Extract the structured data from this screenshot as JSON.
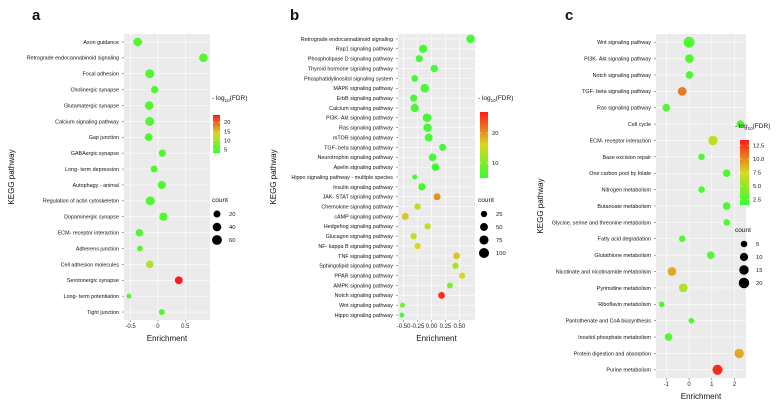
{
  "chart_data": [
    {
      "panel": "a",
      "type": "scatter",
      "xlabel": "Enrichment",
      "ylabel": "KEGG pathway",
      "xticks": [
        -0.5,
        0.0,
        0.5
      ],
      "xlim": [
        -0.62,
        0.95
      ],
      "colorbar": {
        "title_html": "- log",
        "sub": "10",
        "suffix": "(FDR)",
        "ticks": [
          5,
          10,
          15,
          20
        ],
        "min": 3,
        "max": 24
      },
      "size_legend": {
        "title": "count",
        "values": [
          20,
          40,
          60
        ]
      },
      "count_range": [
        1,
        70
      ],
      "pathways": [
        {
          "name": "Axon guidance",
          "x": -0.37,
          "count": 40,
          "fdr": 5
        },
        {
          "name": "Retrograde endocannabinoid signaling",
          "x": 0.83,
          "count": 40,
          "fdr": 5
        },
        {
          "name": "Focal adhesion",
          "x": -0.15,
          "count": 45,
          "fdr": 5
        },
        {
          "name": "Cholinergic synapse",
          "x": -0.06,
          "count": 25,
          "fdr": 5
        },
        {
          "name": "Glutamatergic synapse",
          "x": -0.16,
          "count": 40,
          "fdr": 5
        },
        {
          "name": "Calcium signaling pathway",
          "x": -0.15,
          "count": 45,
          "fdr": 5
        },
        {
          "name": "Gap junction",
          "x": -0.17,
          "count": 30,
          "fdr": 5
        },
        {
          "name": "GABAergic synapse",
          "x": 0.08,
          "count": 25,
          "fdr": 5
        },
        {
          "name": "Long- term depression",
          "x": -0.07,
          "count": 20,
          "fdr": 5
        },
        {
          "name": "Autophagy - animal",
          "x": 0.07,
          "count": 35,
          "fdr": 5
        },
        {
          "name": "Regulation of actin cytoskeleton",
          "x": -0.14,
          "count": 45,
          "fdr": 5
        },
        {
          "name": "Dopaminergic synapse",
          "x": 0.1,
          "count": 35,
          "fdr": 5
        },
        {
          "name": "ECM- receptor interaction",
          "x": -0.34,
          "count": 25,
          "fdr": 5
        },
        {
          "name": "Adherens junction",
          "x": -0.33,
          "count": 10,
          "fdr": 5
        },
        {
          "name": "Cell adhesion molecules",
          "x": -0.15,
          "count": 25,
          "fdr": 11
        },
        {
          "name": "Serotonergic synapse",
          "x": 0.38,
          "count": 30,
          "fdr": 24
        },
        {
          "name": "Long- term potentiation",
          "x": -0.53,
          "count": 5,
          "fdr": 5
        },
        {
          "name": "Tight junction",
          "x": 0.07,
          "count": 10,
          "fdr": 5
        }
      ]
    },
    {
      "panel": "b",
      "type": "scatter",
      "xlabel": "Enrichment",
      "ylabel": "KEGG pathway",
      "xticks": [
        -0.5,
        -0.25,
        0.0,
        0.25,
        0.5
      ],
      "xtick_labels": [
        "-0.50",
        "-0.25",
        "0.00",
        "0.25",
        "0.50"
      ],
      "xlim": [
        -0.6,
        0.78
      ],
      "colorbar": {
        "title_html": "- log",
        "sub": "10",
        "suffix": "(FDR)",
        "ticks": [
          10,
          20
        ],
        "min": 5,
        "max": 27
      },
      "size_legend": {
        "title": "count",
        "values": [
          25,
          50,
          75,
          100
        ]
      },
      "count_range": [
        5,
        110
      ],
      "pathways": [
        {
          "name": "Retrograde endocannabinoid signaling",
          "x": 0.7,
          "count": 60,
          "fdr": 6
        },
        {
          "name": "Rap1 signaling pathway",
          "x": -0.15,
          "count": 55,
          "fdr": 6
        },
        {
          "name": "Phospholipase D signaling pathway",
          "x": -0.22,
          "count": 35,
          "fdr": 6
        },
        {
          "name": "Thyroid hormone signaling pathway",
          "x": 0.05,
          "count": 40,
          "fdr": 6
        },
        {
          "name": "Phosphatidylinositol signaling system",
          "x": -0.3,
          "count": 30,
          "fdr": 6
        },
        {
          "name": "MAPK signaling pathway",
          "x": -0.12,
          "count": 60,
          "fdr": 6
        },
        {
          "name": "ErbB signaling pathway",
          "x": -0.32,
          "count": 35,
          "fdr": 6
        },
        {
          "name": "Calcium signaling pathway",
          "x": -0.3,
          "count": 55,
          "fdr": 6
        },
        {
          "name": "PI3K- Akt signaling pathway",
          "x": -0.08,
          "count": 65,
          "fdr": 6
        },
        {
          "name": "Ras signaling pathway",
          "x": -0.07,
          "count": 60,
          "fdr": 6
        },
        {
          "name": "mTOR signaling pathway",
          "x": -0.05,
          "count": 50,
          "fdr": 6
        },
        {
          "name": "TGF- beta signaling pathway",
          "x": 0.2,
          "count": 35,
          "fdr": 6
        },
        {
          "name": "Neurotrophin signaling pathway",
          "x": 0.02,
          "count": 45,
          "fdr": 6
        },
        {
          "name": "Apelin signaling pathway",
          "x": 0.07,
          "count": 45,
          "fdr": 6
        },
        {
          "name": "Hippo signaling pathway - multiple species",
          "x": -0.3,
          "count": 12,
          "fdr": 6
        },
        {
          "name": "Insulin signaling pathway",
          "x": -0.17,
          "count": 40,
          "fdr": 6
        },
        {
          "name": "JAK- STAT signaling pathway",
          "x": 0.1,
          "count": 35,
          "fdr": 20
        },
        {
          "name": "Chemokine signaling pathway",
          "x": -0.25,
          "count": 25,
          "fdr": 14
        },
        {
          "name": "cAMP signaling pathway",
          "x": -0.47,
          "count": 35,
          "fdr": 17
        },
        {
          "name": "Hedgehog signaling pathway",
          "x": -0.07,
          "count": 25,
          "fdr": 14
        },
        {
          "name": "Glucagon signaling pathway",
          "x": -0.32,
          "count": 25,
          "fdr": 14
        },
        {
          "name": "NF- kappa B signaling pathway",
          "x": -0.25,
          "count": 25,
          "fdr": 16
        },
        {
          "name": "TNF signaling pathway",
          "x": 0.45,
          "count": 30,
          "fdr": 17
        },
        {
          "name": "Sphingolipid signaling pathway",
          "x": 0.43,
          "count": 25,
          "fdr": 13
        },
        {
          "name": "PPAR signaling pathway",
          "x": 0.55,
          "count": 25,
          "fdr": 16
        },
        {
          "name": "AMPK signaling pathway",
          "x": 0.33,
          "count": 20,
          "fdr": 10
        },
        {
          "name": "Notch signaling pathway",
          "x": 0.18,
          "count": 30,
          "fdr": 26
        },
        {
          "name": "Wnt signaling pathway",
          "x": -0.52,
          "count": 12,
          "fdr": 9
        },
        {
          "name": "Hippo signaling pathway",
          "x": -0.53,
          "count": 10,
          "fdr": 6
        }
      ]
    },
    {
      "panel": "c",
      "type": "scatter",
      "xlabel": "Enrichment",
      "ylabel": "KEGG pathway",
      "xticks": [
        -1,
        0,
        1,
        2
      ],
      "xlim": [
        -1.45,
        2.5
      ],
      "colorbar": {
        "title_html": "- log",
        "sub": "10",
        "suffix": "(FDR)",
        "ticks": [
          2.5,
          5.0,
          7.5,
          10.0,
          12.5
        ],
        "tick_labels": [
          "2.5",
          "5.0",
          "7.5",
          "10.0",
          "12.5"
        ],
        "min": 1.5,
        "max": 13.5
      },
      "size_legend": {
        "title": "count",
        "values": [
          5,
          10,
          15,
          20
        ]
      },
      "count_range": [
        1,
        24
      ],
      "pathways": [
        {
          "name": "Wnt signaling pathway",
          "x": 0.0,
          "count": 22,
          "fdr": 2.5
        },
        {
          "name": "PI3K- Akt signaling pathway",
          "x": 0.02,
          "count": 12,
          "fdr": 2.5
        },
        {
          "name": "Notch signaling pathway",
          "x": 0.02,
          "count": 8,
          "fdr": 2.5
        },
        {
          "name": "TGF- beta signaling pathway",
          "x": -0.3,
          "count": 12,
          "fdr": 10.5
        },
        {
          "name": "Ras signaling pathway",
          "x": -1.0,
          "count": 8,
          "fdr": 2.5
        },
        {
          "name": "Cell cycle",
          "x": 2.25,
          "count": 8,
          "fdr": 2.5
        },
        {
          "name": "ECM- receptor interaction",
          "x": 1.05,
          "count": 15,
          "fdr": 6.5
        },
        {
          "name": "Base excision repair",
          "x": 0.55,
          "count": 5,
          "fdr": 2.5
        },
        {
          "name": "One carbon pool by folate",
          "x": 1.65,
          "count": 8,
          "fdr": 2.5
        },
        {
          "name": "Nitrogen metabolism",
          "x": 0.55,
          "count": 5,
          "fdr": 2.5
        },
        {
          "name": "Butanoate metabolism",
          "x": 1.65,
          "count": 8,
          "fdr": 2.5
        },
        {
          "name": "Glycine, serine and threonine metabolism",
          "x": 1.65,
          "count": 5,
          "fdr": 2.5
        },
        {
          "name": "Fatty acid degradation",
          "x": -0.3,
          "count": 5,
          "fdr": 2.5
        },
        {
          "name": "Glutathione metabolism",
          "x": 0.95,
          "count": 8,
          "fdr": 2.5
        },
        {
          "name": "Nicotinate and nicotinamide metabolism",
          "x": -0.75,
          "count": 12,
          "fdr": 9
        },
        {
          "name": "Pyrimidine metabolism",
          "x": -0.25,
          "count": 12,
          "fdr": 6
        },
        {
          "name": "Riboflavin metabolism",
          "x": -1.2,
          "count": 3,
          "fdr": 2.5
        },
        {
          "name": "Pantothenate and CoA biosynthesis",
          "x": 0.1,
          "count": 3,
          "fdr": 2.5
        },
        {
          "name": "Inositol phosphate metabolism",
          "x": -0.9,
          "count": 8,
          "fdr": 2.5
        },
        {
          "name": "Protein digestion and absorption",
          "x": 2.2,
          "count": 15,
          "fdr": 9
        },
        {
          "name": "Purine metabolism",
          "x": 1.25,
          "count": 18,
          "fdr": 13
        }
      ]
    }
  ]
}
